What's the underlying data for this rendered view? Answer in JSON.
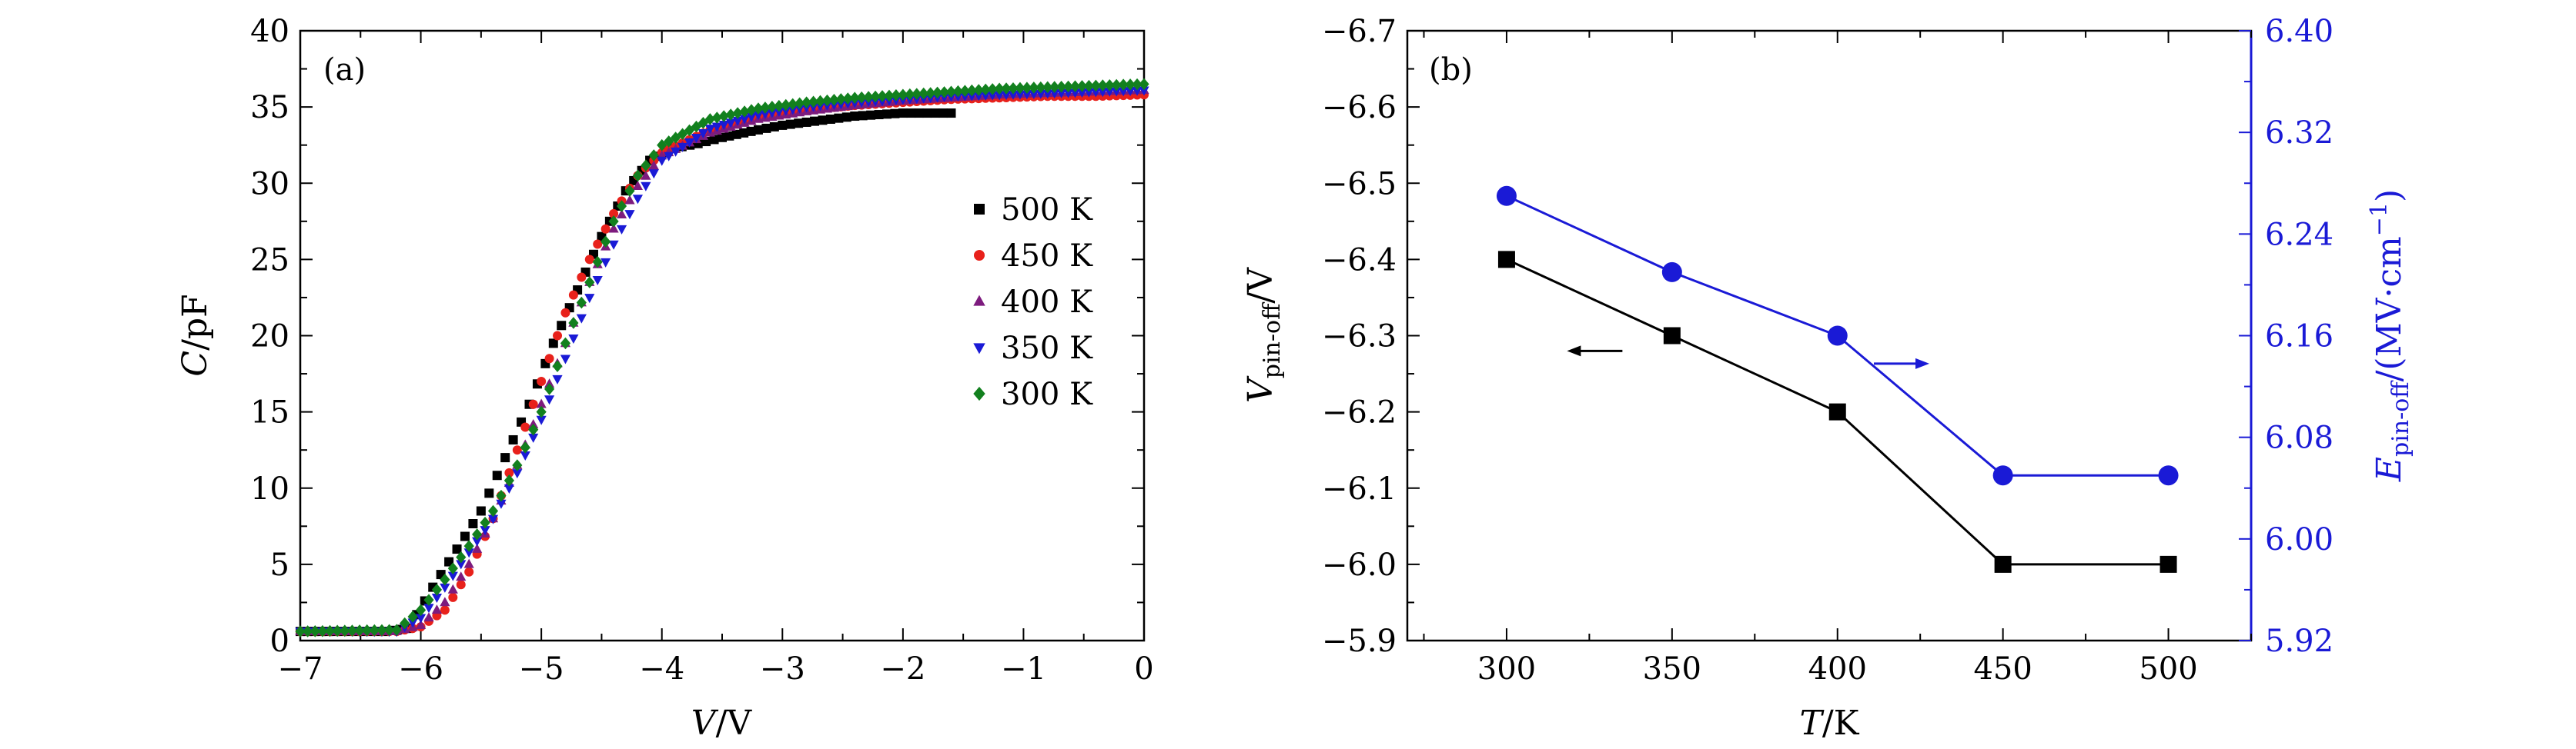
{
  "chart_data": [
    {
      "panel_label": "(a)",
      "type": "scatter",
      "xlabel": {
        "var": "V",
        "unit": "/V"
      },
      "ylabel": {
        "var": "C",
        "unit": "/pF"
      },
      "xlim": [
        -7,
        0
      ],
      "ylim": [
        0,
        40
      ],
      "x_ticks": [
        -7,
        -6,
        -5,
        -4,
        -3,
        -2,
        -1,
        0
      ],
      "y_ticks": [
        0,
        5,
        10,
        15,
        20,
        25,
        30,
        35,
        40
      ],
      "x_tick_labels": [
        "−7",
        "−6",
        "−5",
        "−4",
        "−3",
        "−2",
        "−1",
        "0"
      ],
      "y_tick_labels": [
        "0",
        "5",
        "10",
        "15",
        "20",
        "25",
        "30",
        "35",
        "40"
      ],
      "legend_position": "right",
      "colors": {
        "500 K": "#000000",
        "450 K": "#e8211b",
        "400 K": "#7d1b7e",
        "350 K": "#1a1ad6",
        "300 K": "#12801e"
      },
      "series": [
        {
          "name": "500 K",
          "marker": "square",
          "color": "#000000",
          "x": [
            -7.0,
            -6.3,
            -6.1,
            -5.9,
            -5.7,
            -5.5,
            -5.3,
            -5.1,
            -4.9,
            -4.7,
            -4.5,
            -4.3,
            -4.1,
            -3.9,
            -3.7,
            -3.5,
            -3.2,
            -3.0,
            -2.8,
            -2.6,
            -2.4,
            -2.2,
            -2.0,
            -1.8,
            -1.6
          ],
          "y": [
            0.6,
            0.6,
            0.8,
            3.5,
            6.0,
            8.5,
            12.0,
            15.5,
            19.5,
            23.0,
            26.5,
            29.5,
            31.5,
            32.3,
            32.6,
            33.0,
            33.5,
            33.8,
            34.0,
            34.2,
            34.4,
            34.5,
            34.6,
            34.6,
            34.6
          ]
        },
        {
          "name": "450 K",
          "marker": "circle",
          "color": "#e8211b",
          "x": [
            -7.0,
            -6.2,
            -6.0,
            -5.8,
            -5.6,
            -5.4,
            -5.2,
            -5.0,
            -4.8,
            -4.6,
            -4.4,
            -4.2,
            -4.0,
            -3.6,
            -3.2,
            -2.8,
            -2.4,
            -2.0,
            -1.6,
            -1.2,
            -0.8,
            -0.4,
            0.0
          ],
          "y": [
            0.6,
            0.6,
            0.9,
            2.0,
            4.5,
            8.0,
            12.5,
            17.0,
            21.5,
            25.0,
            28.0,
            30.5,
            32.0,
            33.5,
            34.3,
            34.8,
            35.1,
            35.3,
            35.5,
            35.6,
            35.7,
            35.7,
            35.8
          ]
        },
        {
          "name": "400 K",
          "marker": "triangle-up",
          "color": "#7d1b7e",
          "x": [
            -7.0,
            -6.2,
            -6.0,
            -5.8,
            -5.6,
            -5.4,
            -5.2,
            -5.0,
            -4.8,
            -4.6,
            -4.4,
            -4.2,
            -4.0,
            -3.6,
            -3.2,
            -2.8,
            -2.4,
            -2.0,
            -1.6,
            -1.2,
            -0.8,
            -0.4,
            0.0
          ],
          "y": [
            0.6,
            0.6,
            1.0,
            2.5,
            5.0,
            8.0,
            11.5,
            15.5,
            19.5,
            23.5,
            27.0,
            29.8,
            31.8,
            33.3,
            34.2,
            34.7,
            35.1,
            35.4,
            35.6,
            35.8,
            35.9,
            36.0,
            36.1
          ]
        },
        {
          "name": "350 K",
          "marker": "triangle-down",
          "color": "#1a1ad6",
          "x": [
            -7.0,
            -6.2,
            -6.0,
            -5.8,
            -5.6,
            -5.4,
            -5.2,
            -5.0,
            -4.8,
            -4.6,
            -4.4,
            -4.2,
            -4.0,
            -3.6,
            -3.2,
            -2.8,
            -2.4,
            -2.0,
            -1.6,
            -1.2,
            -0.8,
            -0.4,
            0.0
          ],
          "y": [
            0.6,
            0.6,
            1.5,
            3.5,
            5.8,
            8.0,
            11.0,
            14.5,
            18.5,
            22.5,
            26.0,
            29.0,
            31.5,
            33.6,
            34.5,
            35.0,
            35.3,
            35.5,
            35.7,
            35.8,
            35.9,
            36.0,
            36.1
          ]
        },
        {
          "name": "300 K",
          "marker": "diamond",
          "color": "#12801e",
          "x": [
            -7.0,
            -6.2,
            -6.0,
            -5.8,
            -5.6,
            -5.4,
            -5.2,
            -5.0,
            -4.8,
            -4.6,
            -4.4,
            -4.2,
            -4.0,
            -3.6,
            -3.2,
            -2.8,
            -2.4,
            -2.0,
            -1.6,
            -1.2,
            -0.8,
            -0.4,
            0.0
          ],
          "y": [
            0.6,
            0.7,
            2.0,
            4.0,
            6.2,
            8.5,
            11.5,
            15.0,
            19.5,
            23.5,
            27.5,
            30.5,
            32.5,
            34.2,
            34.9,
            35.3,
            35.6,
            35.8,
            36.0,
            36.2,
            36.3,
            36.4,
            36.5
          ]
        }
      ]
    },
    {
      "panel_label": "(b)",
      "type": "line",
      "xlabel": {
        "var": "T",
        "unit": "/K"
      },
      "ylabel_left": {
        "var": "V",
        "sub": "pin-off",
        "unit": "/V"
      },
      "ylabel_right": {
        "var": "E",
        "sub": "pin-off",
        "unit": "/(MV·cm",
        "sup": "−1",
        "close": ")"
      },
      "xlim": [
        270,
        525
      ],
      "ylim_left": [
        -5.9,
        -6.7
      ],
      "ylim_right": [
        5.92,
        6.4
      ],
      "x_ticks": [
        300,
        350,
        400,
        450,
        500
      ],
      "y_ticks_left": [
        -6.7,
        -6.6,
        -6.5,
        -6.4,
        -6.3,
        -6.2,
        -6.1,
        -6.0,
        -5.9
      ],
      "y_ticks_right": [
        6.4,
        6.32,
        6.24,
        6.16,
        6.08,
        6.0,
        5.92
      ],
      "x_tick_labels": [
        "300",
        "350",
        "400",
        "450",
        "500"
      ],
      "y_tick_labels_left": [
        "−6.7",
        "−6.6",
        "−6.5",
        "−6.4",
        "−6.3",
        "−6.2",
        "−6.1",
        "−6.0",
        "−5.9"
      ],
      "y_tick_labels_right": [
        "6.40",
        "6.32",
        "6.24",
        "6.16",
        "6.08",
        "6.00",
        "5.92"
      ],
      "colors": {
        "left_axis": "#000000",
        "right_axis": "#1a1ad6"
      },
      "series": [
        {
          "name": "V_pin-off",
          "axis": "left",
          "marker": "square",
          "color": "#000000",
          "x": [
            300,
            350,
            400,
            450,
            500
          ],
          "y": [
            -6.4,
            -6.3,
            -6.2,
            -6.0,
            -6.0
          ]
        },
        {
          "name": "E_pin-off",
          "axis": "right",
          "marker": "circle",
          "color": "#1a1ad6",
          "x": [
            300,
            350,
            400,
            450,
            500
          ],
          "y": [
            6.27,
            6.21,
            6.16,
            6.05,
            6.05
          ]
        }
      ],
      "annotations": [
        {
          "type": "arrow",
          "direction": "left",
          "axis": "left"
        },
        {
          "type": "arrow",
          "direction": "right",
          "axis": "right"
        }
      ]
    }
  ]
}
